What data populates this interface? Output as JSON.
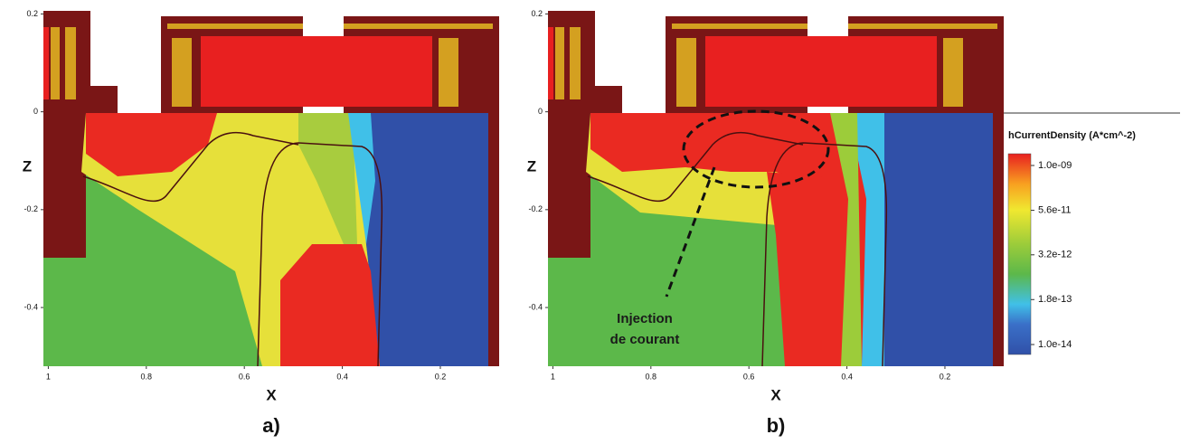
{
  "chart_data": [
    {
      "type": "heatmap",
      "x_label": "X",
      "y_label": "Z",
      "xlim": [
        1.01,
        0.08
      ],
      "ylim": [
        -0.52,
        0.21
      ],
      "xticks": [
        1,
        0.8,
        0.6,
        0.4,
        0.2
      ],
      "yticks": [
        0.2,
        0,
        -0.2,
        -0.4
      ],
      "caption": "a)"
    },
    {
      "type": "heatmap",
      "x_label": "X",
      "y_label": "Z",
      "xlim": [
        1.01,
        0.08
      ],
      "ylim": [
        -0.52,
        0.21
      ],
      "xticks": [
        1,
        0.8,
        0.6,
        0.4,
        0.2
      ],
      "yticks": [
        0.2,
        0,
        -0.2,
        -0.4
      ],
      "caption": "b)",
      "annotation": [
        "Injection",
        "de courant"
      ],
      "colorbar": {
        "title": "hCurrentDensity (A*cm^-2)",
        "scale": "log",
        "lim": [
          1e-14,
          1e-09
        ],
        "ticks": [
          {
            "value": 1e-09,
            "label": "1.0e-09"
          },
          {
            "value": 5.6e-11,
            "label": "5.6e-11"
          },
          {
            "value": 3.2e-12,
            "label": "3.2e-12"
          },
          {
            "value": 1.8e-13,
            "label": "1.8e-13"
          },
          {
            "value": 1e-14,
            "label": "1.0e-14"
          }
        ]
      }
    }
  ]
}
